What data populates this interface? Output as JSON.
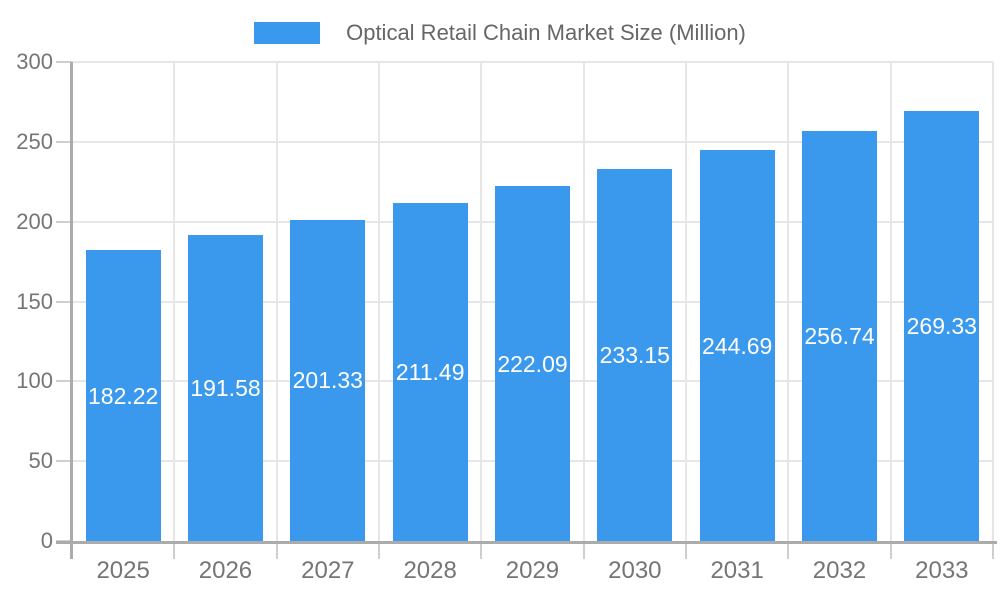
{
  "chart_data": {
    "type": "bar",
    "title": "Optical Retail Chain Market Size (Million)",
    "legend_position": "top",
    "categories": [
      "2025",
      "2026",
      "2027",
      "2028",
      "2029",
      "2030",
      "2031",
      "2032",
      "2033"
    ],
    "values": [
      182.22,
      191.58,
      201.33,
      211.49,
      222.09,
      233.15,
      244.69,
      256.74,
      269.33
    ],
    "value_labels": [
      "182.22",
      "191.58",
      "201.33",
      "211.49",
      "222.09",
      "233.15",
      "244.69",
      "256.74",
      "269.33"
    ],
    "ytick_labels": [
      "0",
      "50",
      "100",
      "150",
      "200",
      "250",
      "300"
    ],
    "yticks": [
      0,
      50,
      100,
      150,
      200,
      250,
      300
    ],
    "ylim": [
      0,
      300
    ],
    "grid": true,
    "xlabel": "",
    "ylabel": "",
    "colors": {
      "bar": "#3a99ec",
      "value_label": "#ffffff",
      "gridline": "#e6e6e6",
      "axis_line": "#ababab",
      "tick": "#cfcfcf",
      "axis_text": "#757575",
      "legend_text": "#666666",
      "background": "#ffffff"
    }
  }
}
